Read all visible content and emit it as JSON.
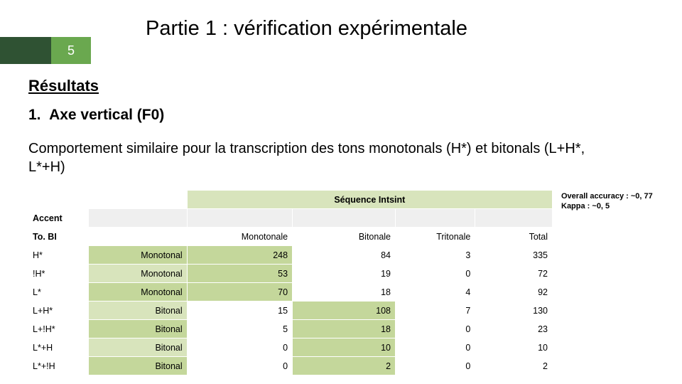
{
  "page_number": "5",
  "title": "Partie 1 : vérification expérimentale",
  "section": "Résultats",
  "list": {
    "number": "1.",
    "label": "Axe vertical (F0)"
  },
  "desc": "Comportement similaire pour la transcription des tons monotonals (H*) et bitonals (L+H*, L*+H)",
  "metrics": {
    "line1": "Overall accuracy : ~0, 77",
    "line2": "Kappa : ~0, 5"
  },
  "table": {
    "seq_header": "Séquence Intsint",
    "accent_label": "Accent",
    "tobi_label": "To. BI",
    "cols": {
      "mono": "Monotonale",
      "bi": "Bitonale",
      "tri": "Tritonale",
      "total": "Total"
    },
    "rows": [
      {
        "tobi": "H*",
        "cat": "Monotonal",
        "mono": "248",
        "bi": "84",
        "tri": "3",
        "tot": "335",
        "diag": "mono"
      },
      {
        "tobi": "!H*",
        "cat": "Monotonal",
        "mono": "53",
        "bi": "19",
        "tri": "0",
        "tot": "72",
        "diag": "mono"
      },
      {
        "tobi": "L*",
        "cat": "Monotonal",
        "mono": "70",
        "bi": "18",
        "tri": "4",
        "tot": "92",
        "diag": "mono"
      },
      {
        "tobi": "L+H*",
        "cat": "Bitonal",
        "mono": "15",
        "bi": "108",
        "tri": "7",
        "tot": "130",
        "diag": "bi"
      },
      {
        "tobi": "L+!H*",
        "cat": "Bitonal",
        "mono": "5",
        "bi": "18",
        "tri": "0",
        "tot": "23",
        "diag": "bi"
      },
      {
        "tobi": "L*+H",
        "cat": "Bitonal",
        "mono": "0",
        "bi": "10",
        "tri": "0",
        "tot": "10",
        "diag": "bi"
      },
      {
        "tobi": "L*+!H",
        "cat": "Bitonal",
        "mono": "0",
        "bi": "2",
        "tri": "0",
        "tot": "2",
        "diag": "bi"
      }
    ]
  },
  "colors": {
    "header_bg": "#d8e4bc",
    "cat_bg_even": "#c4d79b",
    "cat_bg_odd": "#d8e4bc",
    "diag_bg": "#c4d79b",
    "pagebox_dark": "#2f5233",
    "pagebox_light": "#6aa84f"
  }
}
